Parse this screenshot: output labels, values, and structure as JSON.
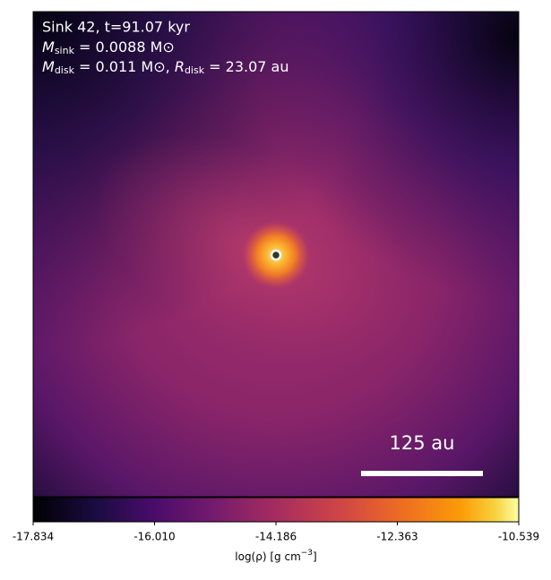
{
  "chart_data": {
    "type": "image",
    "title": "Sink 42, t=91.07 kyr",
    "sink_line": {
      "symbol": "M",
      "sub": "sink",
      "text": " = 0.0088 M⊙"
    },
    "disk_line": {
      "symbol": "M",
      "sub": "disk",
      "text": " = 0.011 M⊙, ",
      "symbol2": "R",
      "sub2": "disk",
      "text2": " = 23.07 au"
    },
    "scale_bar": "125 au",
    "colorbar": {
      "cmap": "inferno",
      "xlim": [
        -17.834,
        -10.539
      ],
      "xticks": [
        -17.834,
        {
          "value": -16.01,
          "label": "-16.010"
        },
        -14.186,
        -12.363,
        -10.539
      ],
      "label": {
        "text": "log(ρ) [g cm",
        "sup": "−3",
        "end": "]"
      }
    }
  }
}
